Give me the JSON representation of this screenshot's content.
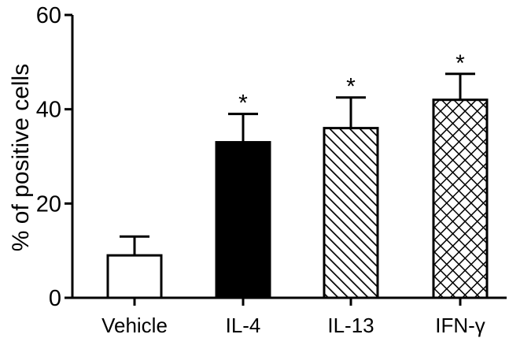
{
  "chart_data": {
    "type": "bar",
    "title": "",
    "xlabel": "",
    "ylabel": "% of positive cells",
    "ylim": [
      0,
      60
    ],
    "yticks": [
      0,
      20,
      40,
      60
    ],
    "grid": false,
    "categories": [
      "Vehicle",
      "IL-4",
      "IL-13",
      "IFN-γ"
    ],
    "values": [
      9,
      33,
      36,
      42
    ],
    "errors": [
      4,
      6,
      6.5,
      5.5
    ],
    "annotations": [
      "",
      "*",
      "*",
      "*"
    ],
    "fills": [
      "none",
      "solid",
      "diagonal-hatch",
      "crosshatch"
    ],
    "colors": {
      "bar_fill_solid": "#000000",
      "bar_stroke": "#000000",
      "background": "#ffffff"
    }
  }
}
